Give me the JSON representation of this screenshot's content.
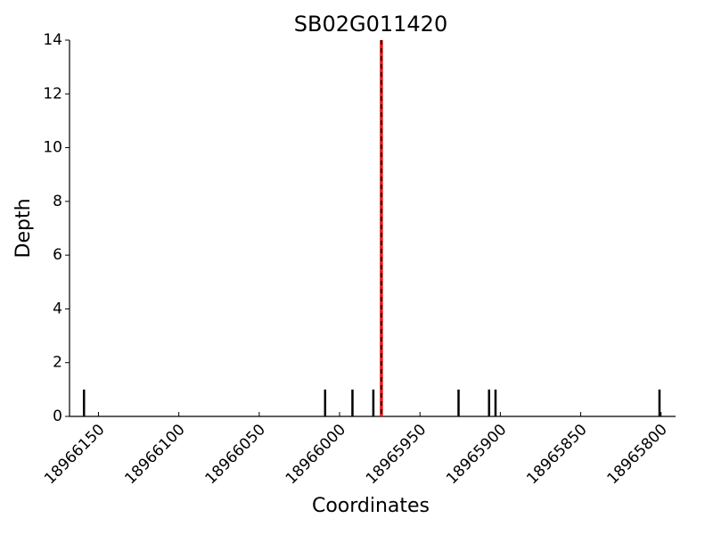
{
  "chart_data": {
    "type": "depth",
    "title": "SB02G011420",
    "x_label": "Coordinates",
    "y_label": "Depth",
    "x": [
      18966159,
      18966009,
      18965992,
      18965979,
      18965926,
      18965907,
      18965903,
      18965801
    ],
    "values": [
      1,
      1,
      1,
      1,
      1,
      1,
      1,
      1
    ],
    "color": "#000000",
    "vline": 18965974,
    "vline_color": "#e41a1c",
    "xlim": [
      18966168,
      18965791
    ],
    "xticks": [
      18966150,
      18966100,
      18966050,
      18966000,
      18965950,
      18965900,
      18965850,
      18965800
    ],
    "ylim": [
      0,
      14
    ],
    "yticks": [
      0,
      2,
      4,
      6,
      8,
      10,
      12,
      14
    ]
  }
}
